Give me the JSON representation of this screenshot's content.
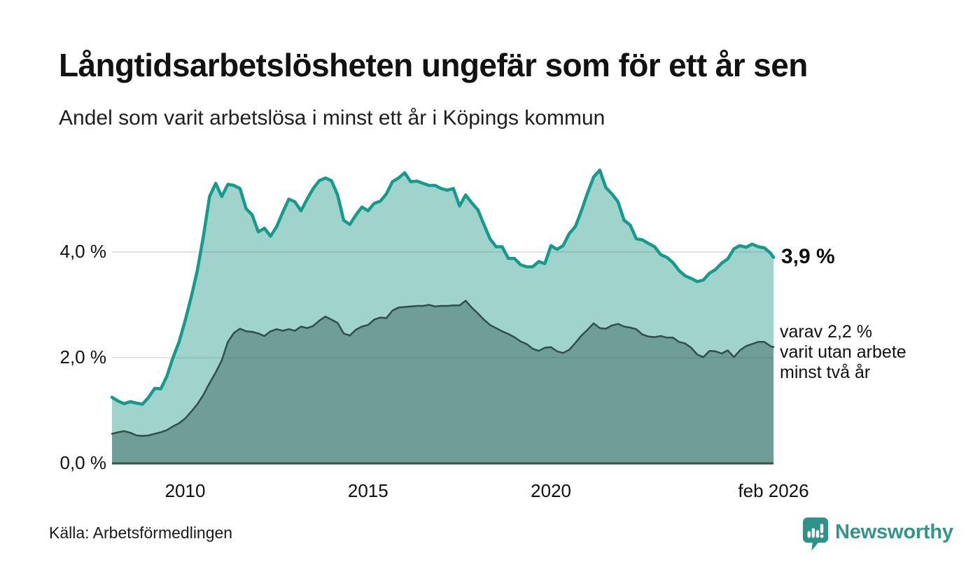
{
  "header": {
    "title": "Långtidsarbetslösheten ungefär som för ett år sen",
    "subtitle": "Andel som varit arbetslösa i minst ett år i Köpings kommun"
  },
  "footer": {
    "source": "Källa: Arbetsförmedlingen",
    "brand": "Newsworthy"
  },
  "colors": {
    "line_1yr": "#169a8b",
    "fill_1yr": "#a0d3cc",
    "line_2yr": "#2f4f4b",
    "fill_2yr": "#6f9d97",
    "grid": "rgba(60,72,70,0.18)",
    "baseline": "#3a524e",
    "brand_teal": "#33948b",
    "title_text": "#121212"
  },
  "chart_data": {
    "type": "area",
    "title": "Andel som varit arbetslösa i minst ett år i Köpings kommun",
    "unit": "%",
    "x_start": "2008-01",
    "x_end": "2026-02",
    "sample_step_months": 2,
    "total_months": 217,
    "ylim": [
      0,
      5.83
    ],
    "grid": "horizontal",
    "legend": "none",
    "yticks": [
      {
        "label": "0,0 %",
        "value": 0
      },
      {
        "label": "2,0 %",
        "value": 2
      },
      {
        "label": "4,0 %",
        "value": 4
      }
    ],
    "xticks": [
      {
        "label": "2010",
        "month": 24
      },
      {
        "label": "2015",
        "month": 84
      },
      {
        "label": "2020",
        "month": 144
      },
      {
        "label": "feb 2026",
        "month": 217
      }
    ],
    "series": [
      {
        "name": "Arbetslösa minst ett år",
        "color": "#169a8b",
        "fill": "#a0d3cc",
        "end_value": "3,9 %",
        "end_label": "3,9 %",
        "values": [
          1.25,
          1.18,
          1.13,
          1.17,
          1.14,
          1.12,
          1.25,
          1.42,
          1.41,
          1.65,
          2.0,
          2.3,
          2.7,
          3.15,
          3.65,
          4.3,
          5.05,
          5.3,
          5.05,
          5.28,
          5.26,
          5.2,
          4.82,
          4.7,
          4.38,
          4.45,
          4.3,
          4.48,
          4.75,
          5.0,
          4.95,
          4.78,
          5.0,
          5.2,
          5.35,
          5.4,
          5.35,
          5.08,
          4.6,
          4.52,
          4.7,
          4.85,
          4.78,
          4.92,
          4.96,
          5.1,
          5.33,
          5.4,
          5.5,
          5.33,
          5.34,
          5.3,
          5.26,
          5.26,
          5.2,
          5.17,
          5.2,
          4.87,
          5.08,
          4.93,
          4.8,
          4.52,
          4.25,
          4.1,
          4.1,
          3.88,
          3.88,
          3.76,
          3.72,
          3.72,
          3.82,
          3.78,
          4.12,
          4.05,
          4.12,
          4.35,
          4.48,
          4.78,
          5.12,
          5.42,
          5.55,
          5.22,
          5.1,
          4.95,
          4.6,
          4.51,
          4.25,
          4.23,
          4.16,
          4.1,
          3.95,
          3.9,
          3.8,
          3.65,
          3.55,
          3.5,
          3.44,
          3.47,
          3.6,
          3.67,
          3.79,
          3.87,
          4.06,
          4.12,
          4.09,
          4.15,
          4.1,
          4.08,
          3.98,
          3.9
        ]
      },
      {
        "name": "Varav utan arbete minst två år",
        "color": "#2f4f4b",
        "fill": "#6f9d97",
        "end_value": "2,2 %",
        "end_label": "varav 2,2 %\nvarit utan arbete\nminst två år",
        "values": [
          0.56,
          0.59,
          0.61,
          0.58,
          0.53,
          0.52,
          0.53,
          0.56,
          0.59,
          0.63,
          0.7,
          0.76,
          0.85,
          0.98,
          1.12,
          1.3,
          1.52,
          1.72,
          1.95,
          2.3,
          2.47,
          2.55,
          2.5,
          2.49,
          2.46,
          2.41,
          2.5,
          2.54,
          2.51,
          2.54,
          2.51,
          2.59,
          2.56,
          2.6,
          2.7,
          2.78,
          2.72,
          2.66,
          2.46,
          2.42,
          2.53,
          2.59,
          2.62,
          2.72,
          2.76,
          2.75,
          2.89,
          2.95,
          2.96,
          2.97,
          2.98,
          2.98,
          3.0,
          2.97,
          2.98,
          2.98,
          2.99,
          2.99,
          3.08,
          2.95,
          2.84,
          2.72,
          2.62,
          2.56,
          2.5,
          2.45,
          2.39,
          2.31,
          2.26,
          2.17,
          2.13,
          2.19,
          2.2,
          2.12,
          2.09,
          2.15,
          2.28,
          2.42,
          2.53,
          2.65,
          2.56,
          2.55,
          2.61,
          2.64,
          2.59,
          2.57,
          2.54,
          2.44,
          2.4,
          2.39,
          2.41,
          2.38,
          2.38,
          2.3,
          2.27,
          2.19,
          2.06,
          2.01,
          2.13,
          2.12,
          2.08,
          2.14,
          2.01,
          2.14,
          2.22,
          2.26,
          2.3,
          2.3,
          2.22,
          2.2
        ]
      }
    ]
  }
}
